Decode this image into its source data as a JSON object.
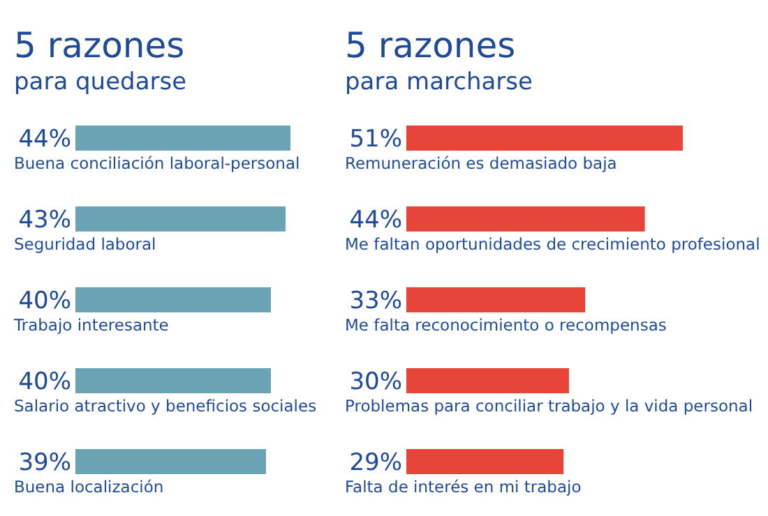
{
  "chart_data": [
    {
      "type": "bar",
      "orientation": "horizontal",
      "title": "5 razones",
      "subtitle": "para quedarse",
      "categories": [
        "Buena conciliación laboral-personal",
        "Seguridad laboral",
        "Trabajo interesante",
        "Salario atractivo y beneficios sociales",
        "Buena localización"
      ],
      "values": [
        44,
        43,
        40,
        40,
        39
      ],
      "value_labels": [
        "44%",
        "43%",
        "40%",
        "40%",
        "39%"
      ],
      "color": "#6aa3b3"
    },
    {
      "type": "bar",
      "orientation": "horizontal",
      "title": "5 razones",
      "subtitle": "para marcharse",
      "categories": [
        "Remuneración es demasiado baja",
        "Me faltan oportunidades de crecimiento profesional",
        "Me falta reconocimiento o recompensas",
        "Problemas para conciliar trabajo y la vida personal",
        "Falta de interés en mi trabajo"
      ],
      "values": [
        51,
        44,
        33,
        30,
        29
      ],
      "value_labels": [
        "51%",
        "44%",
        "33%",
        "30%",
        "29%"
      ],
      "color": "#e8453a"
    }
  ]
}
